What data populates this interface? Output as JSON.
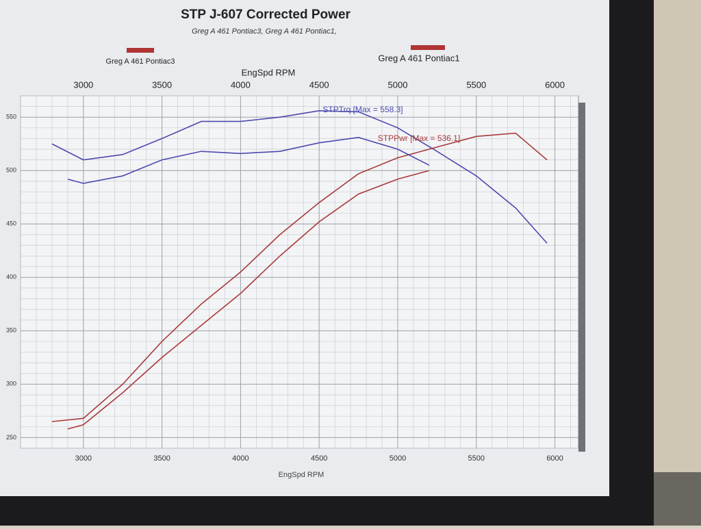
{
  "chart_data": {
    "type": "line",
    "title": "STP J-607 Corrected Power",
    "subtitle": "Greg A  461 Pontiac3, Greg A  461 Pontiac1,",
    "x_label": "EngSpd RPM",
    "xlim": [
      2600,
      6150
    ],
    "xticks": [
      3000,
      3500,
      4000,
      4500,
      5000,
      5500,
      6000
    ],
    "ylim": [
      240,
      570
    ],
    "yticks": [
      250,
      300,
      350,
      400,
      450,
      500,
      550
    ],
    "grid": true,
    "torque_color": "#4a4aae",
    "power_color": "#a83a3a",
    "annotations": [
      {
        "text": "STPTrq [Max = 558.3]",
        "color": "#4a4aae"
      },
      {
        "text": "STPPwr [Max = 536.1]",
        "color": "#a83a3a"
      }
    ],
    "runs": [
      {
        "name": "Greg A  461 Pontiac3",
        "color": "#b03434",
        "x": [
          2800,
          3000,
          3250,
          3500,
          3750,
          4000,
          4250,
          4500,
          4750,
          5000,
          5250,
          5500,
          5750,
          5950
        ],
        "torque": [
          525,
          510,
          515,
          530,
          546,
          546,
          550,
          556,
          555,
          540,
          518,
          495,
          465,
          432
        ],
        "power": [
          265,
          268,
          300,
          340,
          375,
          405,
          440,
          470,
          497,
          512,
          522,
          532,
          535,
          510
        ]
      },
      {
        "name": "Greg A  461 Pontiac1",
        "color": "#b03434",
        "x": [
          2900,
          3000,
          3250,
          3500,
          3750,
          4000,
          4250,
          4500,
          4750,
          5000,
          5200
        ],
        "torque": [
          492,
          488,
          495,
          510,
          518,
          516,
          518,
          526,
          531,
          520,
          505
        ],
        "power": [
          258,
          262,
          292,
          325,
          355,
          385,
          420,
          452,
          478,
          492,
          500
        ]
      }
    ]
  }
}
